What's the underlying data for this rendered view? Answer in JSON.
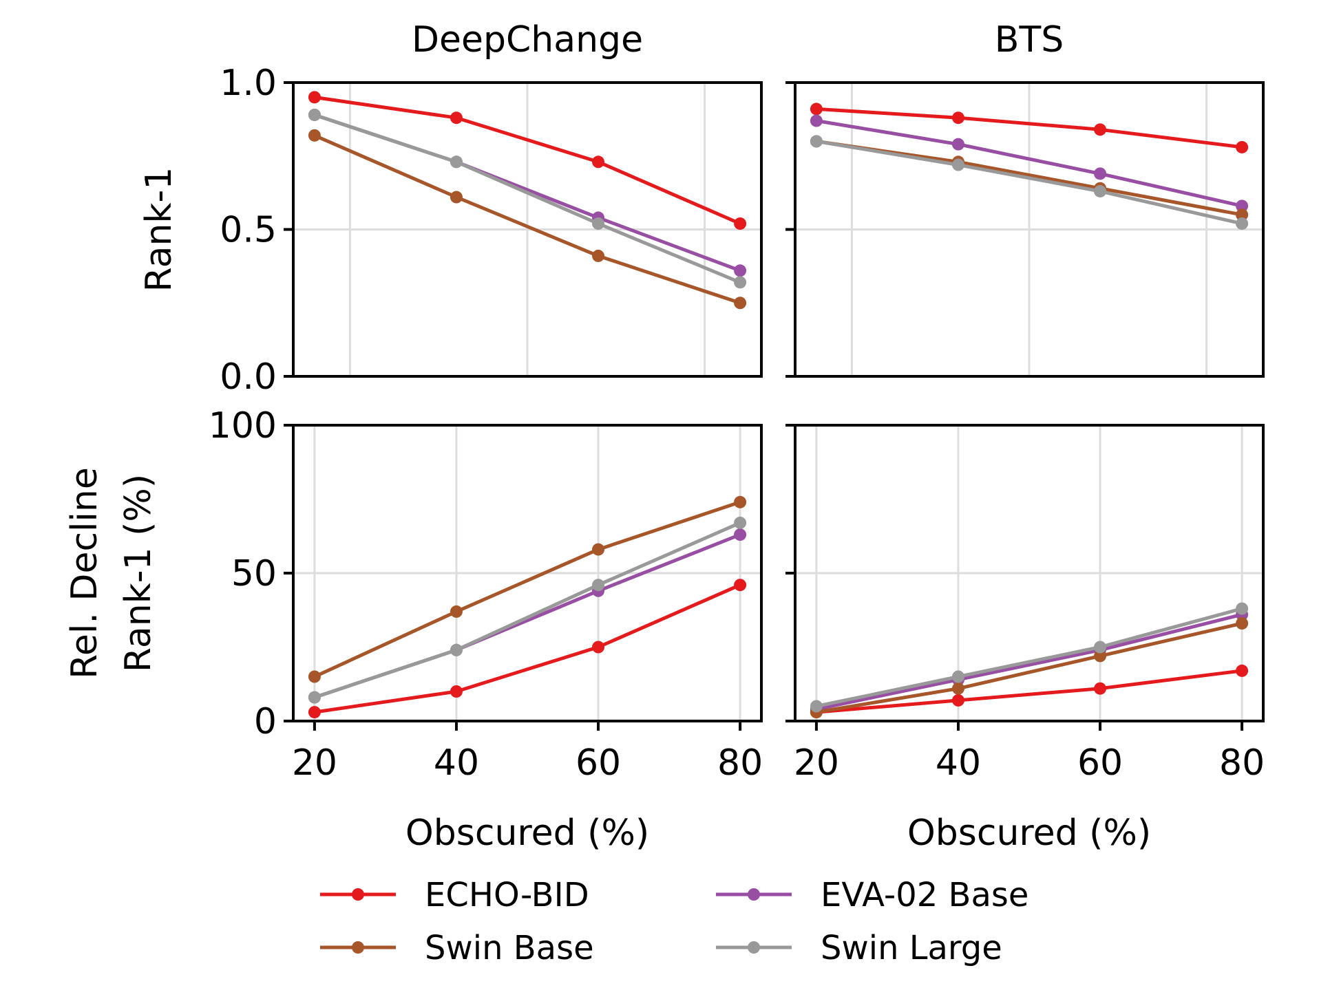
{
  "chart_data": {
    "type": "line",
    "x": [
      20,
      40,
      60,
      80
    ],
    "xlabel": "Obscured (%)",
    "xticks": [
      "20",
      "40",
      "60",
      "80"
    ],
    "datasets": [
      "DeepChange",
      "BTS"
    ],
    "rows": [
      {
        "ylabel": [
          "Rank-1"
        ],
        "ylim": [
          0,
          1.0
        ],
        "yticks": [
          0.0,
          0.5,
          1.0
        ],
        "yticklabels": [
          "0.0",
          "0.5",
          "1.0"
        ],
        "xgrid": [
          25,
          50,
          75
        ]
      },
      {
        "ylabel": [
          "Rel. Decline",
          "Rank-1 (%)"
        ],
        "ylim": [
          0,
          100
        ],
        "yticks": [
          0,
          50,
          100
        ],
        "yticklabels": [
          "0",
          "50",
          "100"
        ],
        "xgrid": [
          20,
          40,
          60,
          80
        ]
      }
    ],
    "panels": [
      {
        "title": "DeepChange",
        "row": 0,
        "col": 0,
        "series": [
          {
            "name": "ECHO-BID",
            "values": [
              0.95,
              0.88,
              0.73,
              0.52
            ]
          },
          {
            "name": "EVA-02 Base",
            "values": [
              0.89,
              0.73,
              0.54,
              0.36
            ]
          },
          {
            "name": "Swin Base",
            "values": [
              0.82,
              0.61,
              0.41,
              0.25
            ]
          },
          {
            "name": "Swin Large",
            "values": [
              0.89,
              0.73,
              0.52,
              0.32
            ]
          }
        ]
      },
      {
        "title": "BTS",
        "row": 0,
        "col": 1,
        "series": [
          {
            "name": "ECHO-BID",
            "values": [
              0.91,
              0.88,
              0.84,
              0.78
            ]
          },
          {
            "name": "EVA-02 Base",
            "values": [
              0.87,
              0.79,
              0.69,
              0.58
            ]
          },
          {
            "name": "Swin Base",
            "values": [
              0.8,
              0.73,
              0.64,
              0.55
            ]
          },
          {
            "name": "Swin Large",
            "values": [
              0.8,
              0.72,
              0.63,
              0.52
            ]
          }
        ]
      },
      {
        "title": "",
        "row": 1,
        "col": 0,
        "series": [
          {
            "name": "ECHO-BID",
            "values": [
              3,
              10,
              25,
              46
            ]
          },
          {
            "name": "EVA-02 Base",
            "values": [
              8,
              24,
              44,
              63
            ]
          },
          {
            "name": "Swin Base",
            "values": [
              15,
              37,
              58,
              74
            ]
          },
          {
            "name": "Swin Large",
            "values": [
              8,
              24,
              46,
              67
            ]
          }
        ]
      },
      {
        "title": "",
        "row": 1,
        "col": 1,
        "series": [
          {
            "name": "ECHO-BID",
            "values": [
              3,
              7,
              11,
              17
            ]
          },
          {
            "name": "EVA-02 Base",
            "values": [
              4,
              14,
              24,
              36
            ]
          },
          {
            "name": "Swin Base",
            "values": [
              3,
              11,
              22,
              33
            ]
          },
          {
            "name": "Swin Large",
            "values": [
              5,
              15,
              25,
              38
            ]
          }
        ]
      }
    ],
    "legend": {
      "position": "bottom",
      "entries": [
        {
          "name": "ECHO-BID",
          "color": "#e41a1c"
        },
        {
          "name": "EVA-02 Base",
          "color": "#984ea3"
        },
        {
          "name": "Swin Base",
          "color": "#a65628"
        },
        {
          "name": "Swin Large",
          "color": "#999999"
        }
      ]
    }
  }
}
